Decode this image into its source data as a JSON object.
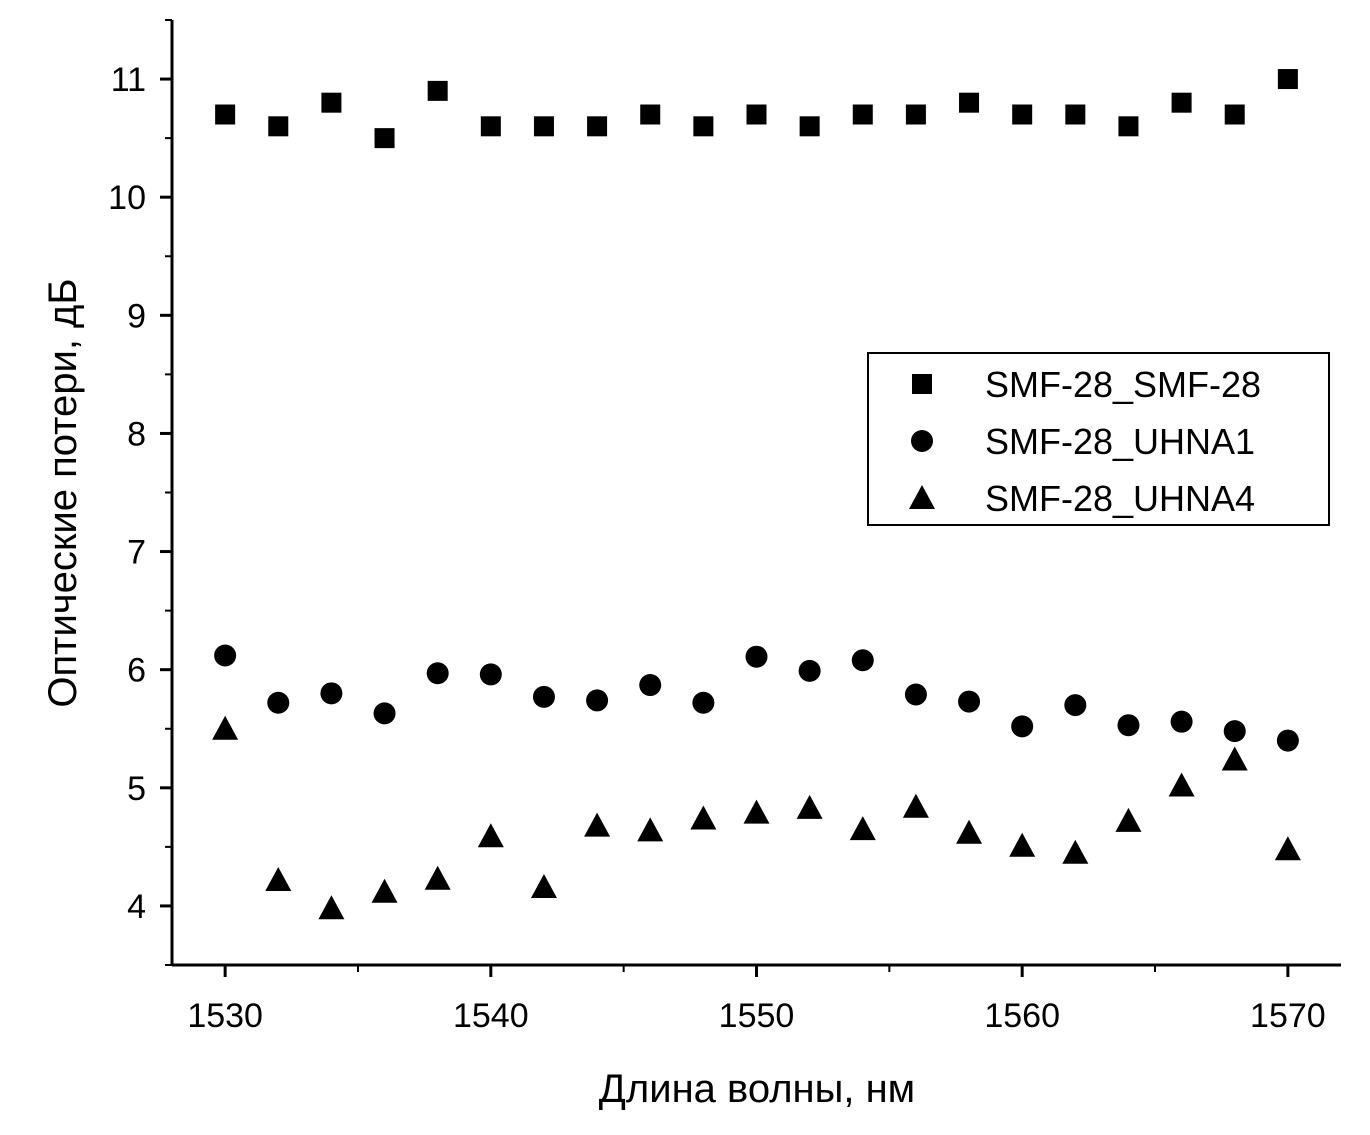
{
  "chart_data": {
    "type": "scatter",
    "title": "",
    "xlabel": "Длина волны, нм",
    "ylabel": "Оптические потери, дБ",
    "xlim": [
      1528,
      1572
    ],
    "ylim": [
      3.5,
      11.5
    ],
    "x_ticks": [
      1530,
      1540,
      1550,
      1560,
      1570
    ],
    "y_ticks": [
      4,
      5,
      6,
      7,
      8,
      9,
      10,
      11
    ],
    "grid": false,
    "legend_position": "center-right",
    "series": [
      {
        "name": "SMF-28_SMF-28",
        "marker": "square",
        "color": "#000000",
        "x": [
          1530,
          1532,
          1534,
          1536,
          1538,
          1540,
          1542,
          1544,
          1546,
          1548,
          1550,
          1552,
          1554,
          1556,
          1558,
          1560,
          1562,
          1564,
          1566,
          1568,
          1570
        ],
        "y": [
          10.7,
          10.6,
          10.8,
          10.5,
          10.9,
          10.6,
          10.6,
          10.6,
          10.7,
          10.6,
          10.7,
          10.6,
          10.7,
          10.7,
          10.8,
          10.7,
          10.7,
          10.6,
          10.8,
          10.7,
          11.0
        ]
      },
      {
        "name": "SMF-28_UHNA1",
        "marker": "circle",
        "color": "#000000",
        "x": [
          1530,
          1532,
          1534,
          1536,
          1538,
          1540,
          1542,
          1544,
          1546,
          1548,
          1550,
          1552,
          1554,
          1556,
          1558,
          1560,
          1562,
          1564,
          1566,
          1568,
          1570
        ],
        "y": [
          6.12,
          5.72,
          5.8,
          5.63,
          5.97,
          5.96,
          5.77,
          5.74,
          5.87,
          5.72,
          6.11,
          5.99,
          6.08,
          5.79,
          5.73,
          5.52,
          5.7,
          5.53,
          5.56,
          5.48,
          5.4
        ]
      },
      {
        "name": "SMF-28_UHNA4",
        "marker": "triangle",
        "color": "#000000",
        "x": [
          1530,
          1532,
          1534,
          1536,
          1538,
          1540,
          1542,
          1544,
          1546,
          1548,
          1550,
          1552,
          1554,
          1556,
          1558,
          1560,
          1562,
          1564,
          1566,
          1568,
          1570
        ],
        "y": [
          5.5,
          4.22,
          3.98,
          4.12,
          4.23,
          4.59,
          4.16,
          4.68,
          4.64,
          4.74,
          4.79,
          4.83,
          4.65,
          4.84,
          4.62,
          4.51,
          4.45,
          4.72,
          5.02,
          5.24,
          4.48
        ]
      }
    ]
  }
}
